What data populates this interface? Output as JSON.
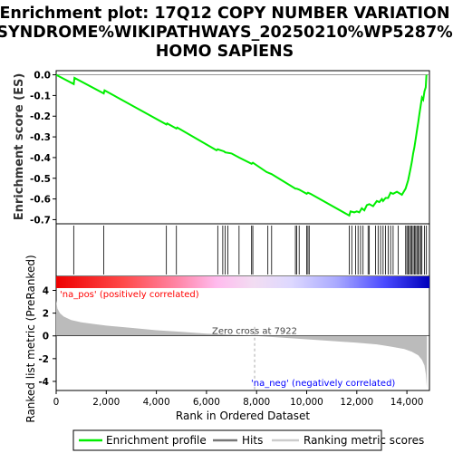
{
  "title": [
    "Enrichment plot: 17Q12 COPY NUMBER VARIATION",
    "SYNDROME%WIKIPATHWAYS_20250210%WP5287%",
    "HOMO SAPIENS"
  ],
  "colors": {
    "enrichment_line": "#00ee00",
    "hit_lines": "#000000",
    "metric_fill": "#bbbbbb",
    "pos_annot": "#ff0000",
    "neg_annot": "#0000ff",
    "zero_cross_line": "#aaaaaa"
  },
  "chart_data": [
    {
      "type": "line",
      "name": "enrichment-profile",
      "ylabel": "Enrichment score (ES)",
      "ylim": [
        -0.72,
        0.02
      ],
      "yticks": [
        0.0,
        -0.1,
        -0.2,
        -0.3,
        -0.4,
        -0.5,
        -0.6,
        -0.7
      ],
      "ytick_labels": [
        "0.0",
        "-0.1",
        "-0.2",
        "-0.3",
        "-0.4",
        "-0.5",
        "-0.6",
        "-0.7"
      ],
      "xlim": [
        0,
        14900
      ],
      "series": [
        {
          "name": "Enrichment profile",
          "x": [
            0,
            700,
            730,
            1900,
            1930,
            4400,
            4430,
            4800,
            4830,
            6400,
            6450,
            6700,
            6750,
            7000,
            7300,
            7800,
            7850,
            8400,
            8600,
            9550,
            9600,
            9700,
            10000,
            10050,
            10150,
            11700,
            11750,
            11900,
            12000,
            12100,
            12200,
            12300,
            12400,
            12500,
            12650,
            12800,
            12900,
            13000,
            13050,
            13150,
            13250,
            13350,
            13450,
            13600,
            13800,
            13950,
            14000,
            14050,
            14100,
            14150,
            14200,
            14250,
            14300,
            14350,
            14400,
            14450,
            14500,
            14550,
            14600,
            14650,
            14700,
            14750,
            14780
          ],
          "y": [
            0.0,
            -0.045,
            -0.015,
            -0.09,
            -0.075,
            -0.24,
            -0.235,
            -0.26,
            -0.255,
            -0.365,
            -0.36,
            -0.37,
            -0.375,
            -0.38,
            -0.4,
            -0.43,
            -0.425,
            -0.47,
            -0.48,
            -0.55,
            -0.55,
            -0.555,
            -0.575,
            -0.57,
            -0.575,
            -0.68,
            -0.66,
            -0.665,
            -0.66,
            -0.665,
            -0.645,
            -0.655,
            -0.63,
            -0.625,
            -0.635,
            -0.61,
            -0.615,
            -0.6,
            -0.61,
            -0.595,
            -0.595,
            -0.57,
            -0.575,
            -0.565,
            -0.58,
            -0.55,
            -0.53,
            -0.51,
            -0.48,
            -0.45,
            -0.42,
            -0.38,
            -0.35,
            -0.31,
            -0.27,
            -0.23,
            -0.19,
            -0.15,
            -0.11,
            -0.12,
            -0.08,
            -0.06,
            0.0
          ]
        }
      ]
    },
    {
      "type": "scatter",
      "name": "hits",
      "xlim": [
        0,
        14900
      ],
      "x": [
        700,
        1900,
        4400,
        4800,
        6450,
        6650,
        6750,
        6850,
        7300,
        7800,
        7850,
        8450,
        8600,
        9550,
        9600,
        9700,
        10000,
        10050,
        10100,
        11700,
        11800,
        11950,
        12050,
        12150,
        12250,
        12450,
        12500,
        12750,
        12850,
        12950,
        13050,
        13150,
        13250,
        13350,
        13450,
        13650,
        13950,
        14000,
        14050,
        14100,
        14150,
        14200,
        14250,
        14300,
        14350,
        14400,
        14450,
        14500,
        14550,
        14600,
        14700,
        14780
      ]
    },
    {
      "type": "area",
      "name": "ranked-list-metric",
      "ylabel": "Ranked list metric (PreRanked)",
      "xlabel": "Rank in Ordered Dataset",
      "ylim": [
        -4.8,
        4.2
      ],
      "yticks": [
        4,
        2,
        0,
        -2,
        -4
      ],
      "ytick_labels": [
        "4",
        "2",
        "0",
        "-2",
        "-4"
      ],
      "xlim": [
        0,
        14900
      ],
      "xticks": [
        0,
        2000,
        4000,
        6000,
        8000,
        10000,
        12000,
        14000
      ],
      "xtick_labels": [
        "0",
        "2,000",
        "4,000",
        "6,000",
        "8,000",
        "10,000",
        "12,000",
        "14,000"
      ],
      "x": [
        0,
        50,
        150,
        300,
        600,
        1000,
        1500,
        2000,
        3000,
        4000,
        5000,
        6000,
        7000,
        7922,
        9000,
        10000,
        11000,
        12000,
        12800,
        13400,
        13900,
        14200,
        14450,
        14600,
        14700,
        14760,
        14800
      ],
      "values": [
        3.1,
        2.4,
        2.0,
        1.7,
        1.4,
        1.2,
        1.05,
        0.9,
        0.7,
        0.5,
        0.35,
        0.2,
        0.1,
        0.0,
        -0.15,
        -0.3,
        -0.45,
        -0.6,
        -0.75,
        -0.95,
        -1.15,
        -1.4,
        -1.7,
        -2.1,
        -2.6,
        -3.4,
        -4.6
      ],
      "zero_cross": 7922,
      "annotations": {
        "zero_cross": "Zero cross at 7922",
        "pos": "'na_pos' (positively correlated)",
        "neg": "'na_neg' (negatively correlated)"
      }
    }
  ],
  "legend": {
    "items": [
      {
        "label": "Enrichment profile",
        "color": "#00ee00"
      },
      {
        "label": "Hits",
        "color": "#777777"
      },
      {
        "label": "Ranking metric scores",
        "color": "#cccccc"
      }
    ]
  }
}
